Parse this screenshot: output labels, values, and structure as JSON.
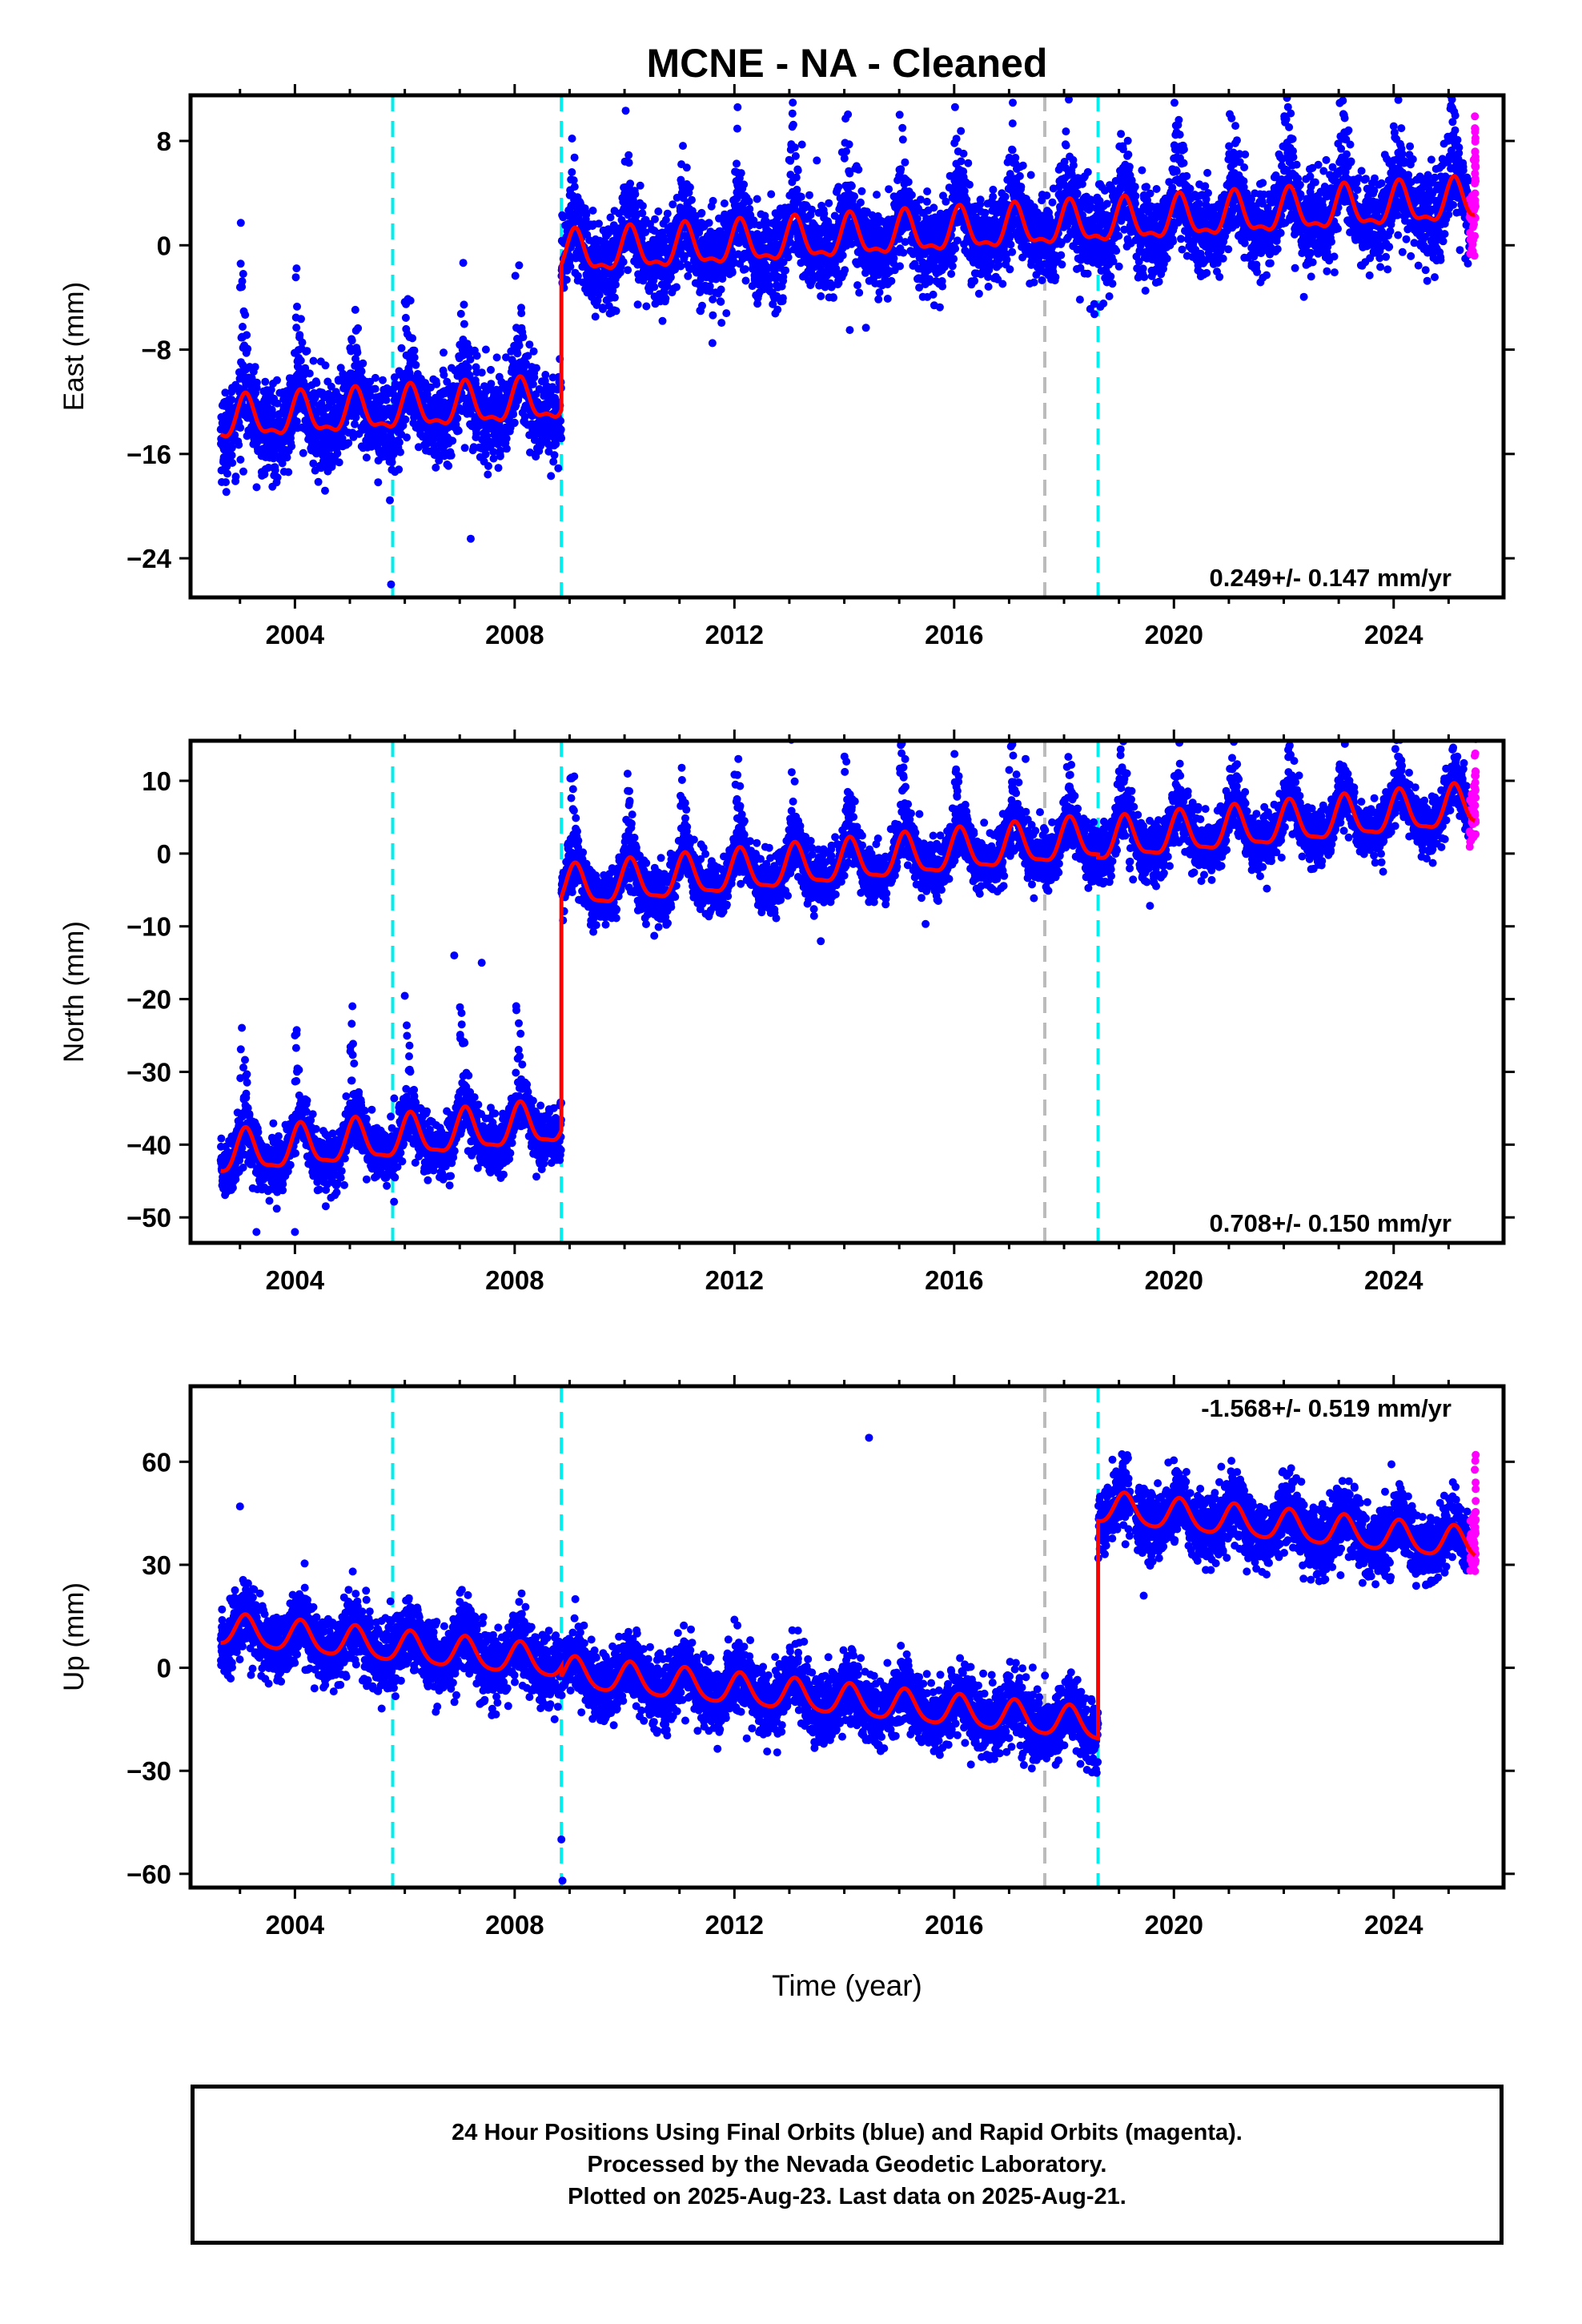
{
  "chart_data": {
    "title": "MCNE  - NA - Cleaned",
    "xlabel": "Time (year)",
    "xlim": [
      2002.1,
      2026.0
    ],
    "xticks": [
      2004,
      2008,
      2012,
      2016,
      2020,
      2024
    ],
    "colors": {
      "final": "#0000ff",
      "rapid": "#ff00ff",
      "model": "#ff0000",
      "event_cyan": "#00eeee",
      "event_gray": "#bbbbbb"
    },
    "events_cyan": [
      2005.78,
      2008.85,
      2018.62
    ],
    "events_gray": [
      2017.65
    ],
    "panels": [
      {
        "type": "scatter",
        "ylabel": "East (mm)",
        "ylim": [
          -27,
          11.5
        ],
        "yticks": [
          8,
          0,
          -8,
          -16,
          -24
        ],
        "ytick_labels": [
          "8",
          "0",
          "−8",
          "−16",
          "−24"
        ],
        "rate": "0.249+/- 0.147 mm/yr",
        "rate_position": "bottom-right",
        "data_start": 2002.65,
        "data_end": 2025.48,
        "rapid_start": 2025.38,
        "offsets": [
          [
            2002.65,
            -13.5
          ],
          [
            2008.85,
            -0.8
          ],
          [
            2018.62,
            1.6
          ]
        ],
        "trend_mm_per_yr": 0.249,
        "annual_amp": 1.5,
        "semiannual_amp": 0.6,
        "noise_sigma": 1.7,
        "spike_amp": 10,
        "outliers": [
          [
            2005.75,
            -26
          ],
          [
            2007.2,
            -22.5
          ],
          [
            2011.6,
            -7.5
          ],
          [
            2013.5,
            6.5
          ],
          [
            2018.55,
            -4.5
          ],
          [
            2014.1,
            -6.5
          ]
        ]
      },
      {
        "type": "scatter",
        "ylabel": "North (mm)",
        "ylim": [
          -53.5,
          15.5
        ],
        "yticks": [
          10,
          0,
          -10,
          -20,
          -30,
          -40,
          -50
        ],
        "ytick_labels": [
          "10",
          "0",
          "−10",
          "−20",
          "−30",
          "−40",
          "−50"
        ],
        "rate": "0.708+/- 0.150 mm/yr",
        "rate_position": "bottom-right",
        "data_start": 2002.65,
        "data_end": 2025.48,
        "rapid_start": 2025.38,
        "offsets": [
          [
            2002.65,
            -41.5
          ],
          [
            2008.85,
            -5.0
          ],
          [
            2018.62,
            1.5
          ]
        ],
        "trend_mm_per_yr": 0.708,
        "annual_amp": 2.8,
        "semiannual_amp": 0.8,
        "noise_sigma": 1.9,
        "spike_amp": 18,
        "outliers": [
          [
            2003.3,
            -52
          ],
          [
            2006.9,
            -14
          ],
          [
            2007.4,
            -15
          ],
          [
            2010.7,
            -9
          ],
          [
            2017.3,
            13
          ],
          [
            2004.0,
            -52
          ]
        ]
      },
      {
        "type": "scatter",
        "ylabel": "Up (mm)",
        "ylim": [
          -64,
          82
        ],
        "yticks": [
          60,
          30,
          0,
          -30,
          -60
        ],
        "ytick_labels": [
          "60",
          "30",
          "0",
          "−30",
          "−60"
        ],
        "rate": "-1.568+/- 0.519 mm/yr",
        "rate_position": "top-right",
        "data_start": 2002.65,
        "data_end": 2025.48,
        "rapid_start": 2025.38,
        "gap": [
          2019.2,
          2019.3
        ],
        "offsets": [
          [
            2002.65,
            11.0
          ],
          [
            2008.85,
            -1.5
          ],
          [
            2018.62,
            46.5
          ]
        ],
        "trend_mm_per_yr": -1.568,
        "annual_amp": 4.5,
        "semiannual_amp": 0.8,
        "noise_sigma": 5.0,
        "spike_amp": 0,
        "outliers": [
          [
            2008.85,
            -50
          ],
          [
            2008.87,
            -62
          ],
          [
            2014.45,
            67
          ],
          [
            2019.45,
            21
          ],
          [
            2003.0,
            47
          ],
          [
            2012.0,
            14
          ]
        ]
      }
    ]
  },
  "footer": {
    "line1": "24 Hour Positions Using Final Orbits (blue) and Rapid Orbits (magenta).",
    "line2": "Processed by the Nevada Geodetic Laboratory.",
    "line3": "Plotted on 2025-Aug-23. Last data on 2025-Aug-21."
  }
}
